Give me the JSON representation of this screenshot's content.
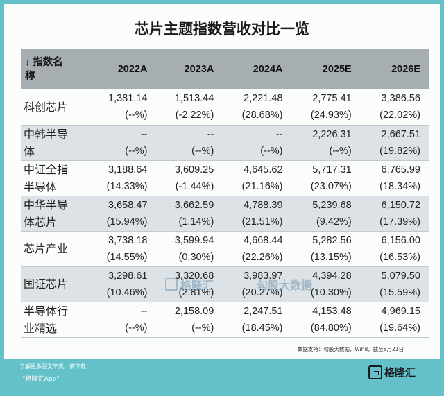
{
  "title": "芯片主题指数营收对比一览",
  "table": {
    "header": {
      "name_line1": "↓ 指数名",
      "name_line2": "称",
      "years": [
        "2022A",
        "2023A",
        "2024A",
        "2025E",
        "2026E"
      ]
    },
    "rows": [
      {
        "name": [
          "科创芯片"
        ],
        "cells": [
          {
            "value": "1,381.14",
            "growth": "(--%)"
          },
          {
            "value": "1,513.44",
            "growth": "(-2.22%)"
          },
          {
            "value": "2,221.48",
            "growth": "(28.68%)"
          },
          {
            "value": "2,775.41",
            "growth": "(24.93%)"
          },
          {
            "value": "3,386.56",
            "growth": "(22.02%)"
          }
        ]
      },
      {
        "name": [
          "中韩半导",
          "体"
        ],
        "cells": [
          {
            "value": "--",
            "growth": "(--%)"
          },
          {
            "value": "--",
            "growth": "(--%)"
          },
          {
            "value": "--",
            "growth": "(--%)"
          },
          {
            "value": "2,226.31",
            "growth": "(--%)"
          },
          {
            "value": "2,667.51",
            "growth": "(19.82%)"
          }
        ]
      },
      {
        "name": [
          "中证全指",
          "半导体"
        ],
        "cells": [
          {
            "value": "3,188.64",
            "growth": "(14.33%)"
          },
          {
            "value": "3,609.25",
            "growth": "(-1.44%)"
          },
          {
            "value": "4,645.62",
            "growth": "(21.16%)"
          },
          {
            "value": "5,717.31",
            "growth": "(23.07%)"
          },
          {
            "value": "6,765.99",
            "growth": "(18.34%)"
          }
        ]
      },
      {
        "name": [
          "中华半导",
          "体芯片"
        ],
        "cells": [
          {
            "value": "3,658.47",
            "growth": "(15.94%)"
          },
          {
            "value": "3,662.59",
            "growth": "(1.14%)"
          },
          {
            "value": "4,788.39",
            "growth": "(21.51%)"
          },
          {
            "value": "5,239.68",
            "growth": "(9.42%)"
          },
          {
            "value": "6,150.72",
            "growth": "(17.39%)"
          }
        ]
      },
      {
        "name": [
          "芯片产业"
        ],
        "cells": [
          {
            "value": "3,738.18",
            "growth": "(14.55%)"
          },
          {
            "value": "3,599.94",
            "growth": "(0.30%)"
          },
          {
            "value": "4,668.44",
            "growth": "(22.26%)"
          },
          {
            "value": "5,282.56",
            "growth": "(13.15%)"
          },
          {
            "value": "6,156.00",
            "growth": "(16.53%)"
          }
        ]
      },
      {
        "name": [
          "国证芯片"
        ],
        "cells": [
          {
            "value": "3,298.61",
            "growth": "(10.46%)"
          },
          {
            "value": "3,320.68",
            "growth": "(2.81%)"
          },
          {
            "value": "3,983.97",
            "growth": "(20.27%)"
          },
          {
            "value": "4,394.28",
            "growth": "(10.30%)"
          },
          {
            "value": "5,079.50",
            "growth": "(15.59%)"
          }
        ]
      },
      {
        "name": [
          "半导体行",
          "业精选"
        ],
        "cells": [
          {
            "value": "--",
            "growth": "(--%)"
          },
          {
            "value": "2,158.09",
            "growth": "(--%)"
          },
          {
            "value": "2,247.51",
            "growth": "(18.45%)"
          },
          {
            "value": "4,153.48",
            "growth": "(84.80%)"
          },
          {
            "value": "4,969.15",
            "growth": "(19.64%)"
          }
        ]
      }
    ]
  },
  "source": "数据支持：勾股大数据，Wind，截至8月21日",
  "watermark": {
    "brand": "格隆汇",
    "data": "勾股大数据"
  },
  "footer": {
    "note": "了解更多图文干货，请下载",
    "app": "“格隆汇App”",
    "brand": "格隆汇"
  },
  "colors": {
    "background": "#64c1c9",
    "header": "#a7aeb1",
    "stripe": "#dde2e6"
  }
}
